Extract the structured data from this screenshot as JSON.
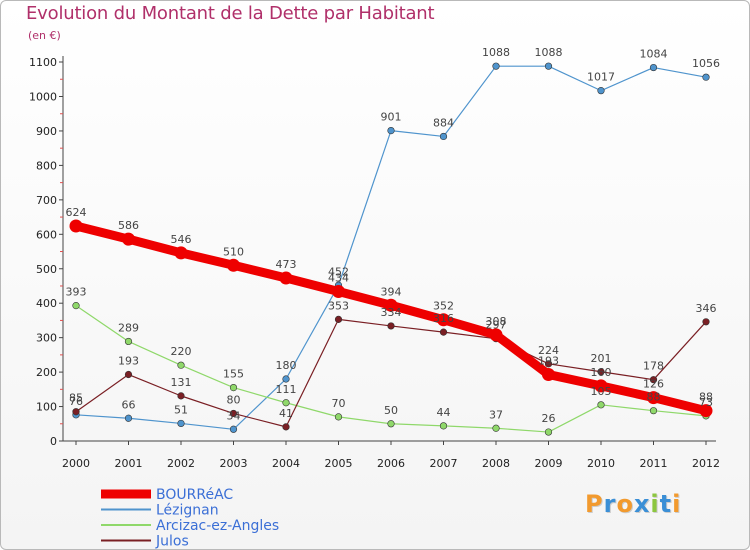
{
  "title": "Evolution du Montant de la Dette par Habitant",
  "subtitle": "(en €)",
  "logo": {
    "text": "Proxiti",
    "letters": [
      "P",
      "r",
      "o",
      "x",
      "i",
      "t",
      "i"
    ],
    "colors": [
      "#f29a2e",
      "#3b8fd6",
      "#f29a2e",
      "#3b8fd6",
      "#8cc63f",
      "#3b8fd6",
      "#f29a2e"
    ]
  },
  "chart_data": {
    "type": "line",
    "x": [
      2000,
      2001,
      2002,
      2003,
      2004,
      2005,
      2006,
      2007,
      2008,
      2009,
      2010,
      2011,
      2012
    ],
    "ylim": [
      0,
      1100
    ],
    "yticks": [
      0,
      100,
      200,
      300,
      400,
      500,
      600,
      700,
      800,
      900,
      1000,
      1100
    ],
    "grid": false,
    "legend_position": "bottom-left",
    "series": [
      {
        "name": "BOURRéAC",
        "color": "#ee0000",
        "values": [
          624,
          586,
          546,
          510,
          473,
          434,
          394,
          352,
          308,
          193,
          160,
          126,
          88
        ]
      },
      {
        "name": "Lézignan",
        "color": "#4f94cd",
        "values": [
          76,
          66,
          51,
          34,
          180,
          452,
          901,
          884,
          1088,
          1088,
          1017,
          1084,
          1056
        ]
      },
      {
        "name": "Arcizac-ez-Angles",
        "color": "#8fd86a",
        "values": [
          393,
          289,
          220,
          155,
          111,
          70,
          50,
          44,
          37,
          26,
          105,
          88,
          73
        ]
      },
      {
        "name": "Julos",
        "color": "#7a1f24",
        "values": [
          85,
          193,
          131,
          80,
          41,
          353,
          334,
          316,
          297,
          224,
          201,
          178,
          346
        ]
      }
    ]
  }
}
